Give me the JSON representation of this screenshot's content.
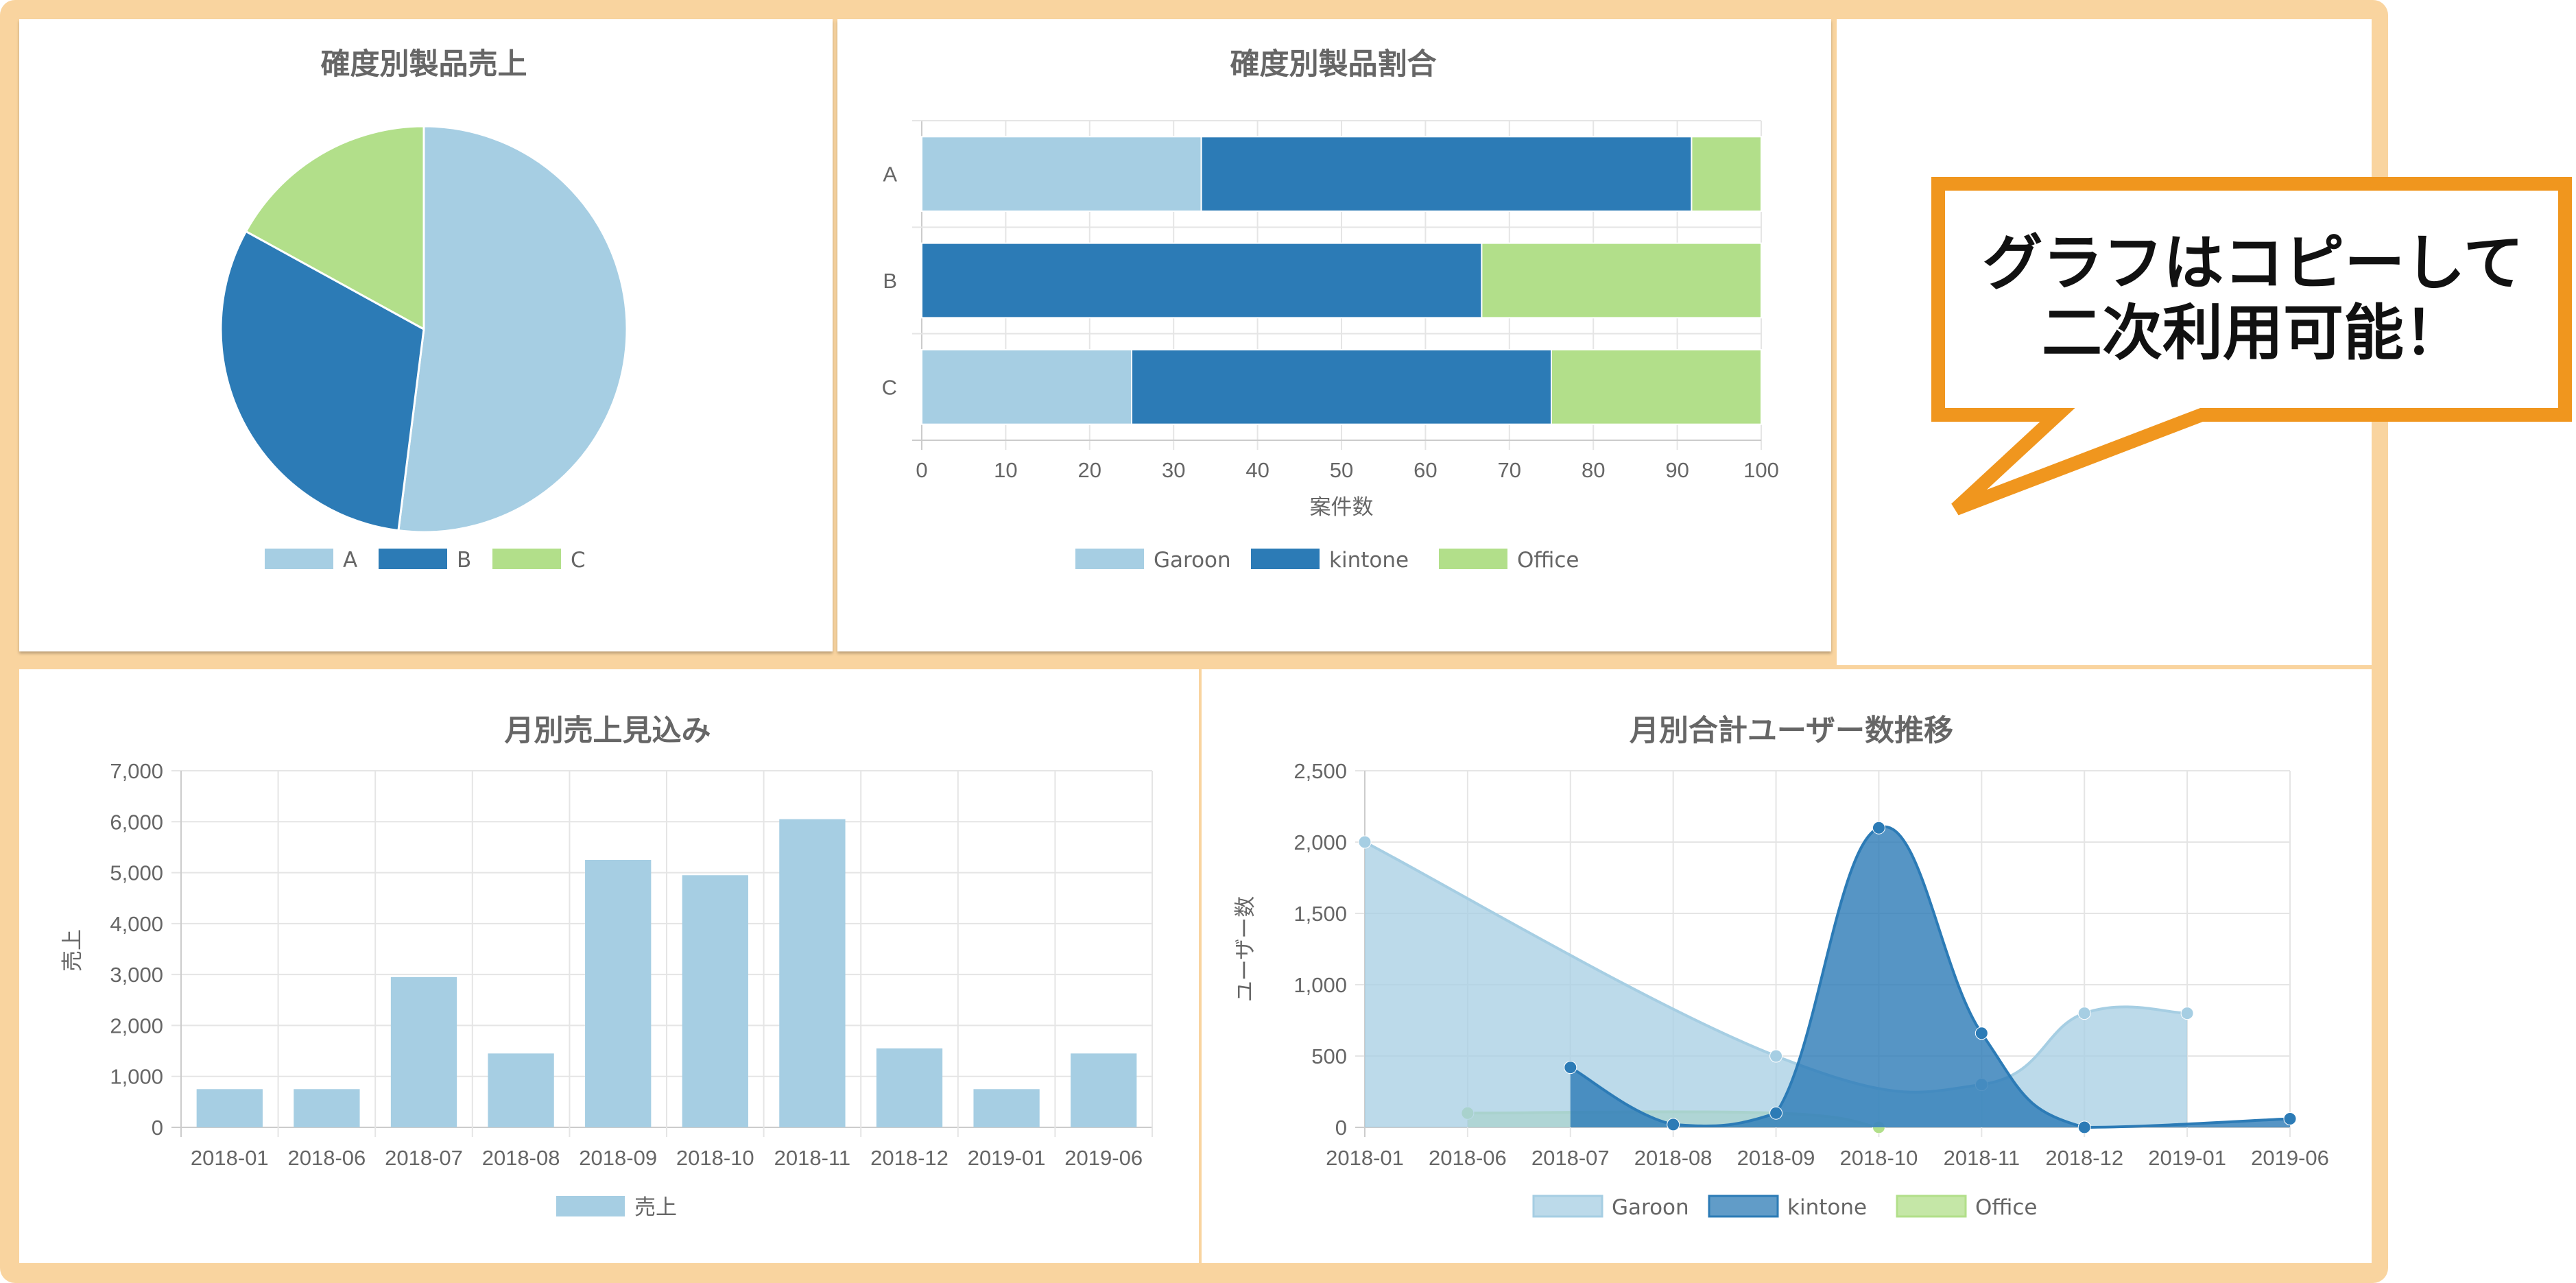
{
  "callout": {
    "line1": "グラフはコピーして",
    "line2": "二次利用可能！"
  },
  "colors": {
    "light": "#a6cee3",
    "dark": "#2c7bb6",
    "green": "#b2df8a",
    "frame": "#f9d49f",
    "callout_border": "#f0961e"
  },
  "chart_data": [
    {
      "id": "pie",
      "type": "pie",
      "title": "確度別製品売上",
      "labels": [
        "A",
        "B",
        "C"
      ],
      "values": [
        52,
        31,
        17
      ],
      "colors": [
        "#a6cee3",
        "#2c7bb6",
        "#b2df8a"
      ]
    },
    {
      "id": "stacked",
      "type": "bar",
      "orientation": "horizontal",
      "stacked": true,
      "title": "確度別製品割合",
      "categories": [
        "A",
        "B",
        "C"
      ],
      "xlabel": "案件数",
      "xlim": [
        0,
        100
      ],
      "xticks": [
        0,
        10,
        20,
        30,
        40,
        50,
        60,
        70,
        80,
        90,
        100
      ],
      "series": [
        {
          "name": "Garoon",
          "values": [
            33.3,
            0,
            25
          ],
          "color": "#a6cee3"
        },
        {
          "name": "kintone",
          "values": [
            58.4,
            66.7,
            50
          ],
          "color": "#2c7bb6"
        },
        {
          "name": "Office",
          "values": [
            8.3,
            33.3,
            25
          ],
          "color": "#b2df8a"
        }
      ]
    },
    {
      "id": "monthly",
      "type": "bar",
      "title": "月別売上見込み",
      "categories": [
        "2018-01",
        "2018-06",
        "2018-07",
        "2018-08",
        "2018-09",
        "2018-10",
        "2018-11",
        "2018-12",
        "2019-01",
        "2019-06"
      ],
      "ylabel": "売上",
      "ylim": [
        0,
        7000
      ],
      "yticks": [
        "0",
        "1,000",
        "2,000",
        "3,000",
        "4,000",
        "5,000",
        "6,000",
        "7,000"
      ],
      "series": [
        {
          "name": "売上",
          "values": [
            750,
            750,
            2950,
            1450,
            5250,
            4950,
            6050,
            1550,
            750,
            1450
          ],
          "color": "#a6cee3"
        }
      ]
    },
    {
      "id": "users",
      "type": "area",
      "title": "月別合計ユーザー数推移",
      "categories": [
        "2018-01",
        "2018-06",
        "2018-07",
        "2018-08",
        "2018-09",
        "2018-10",
        "2018-11",
        "2018-12",
        "2019-01",
        "2019-06"
      ],
      "ylabel": "ユーザー数",
      "ylim": [
        0,
        2500
      ],
      "yticks": [
        "0",
        "500",
        "1,000",
        "1,500",
        "2,000",
        "2,500"
      ],
      "series": [
        {
          "name": "Garoon",
          "values": [
            2000,
            null,
            null,
            null,
            500,
            null,
            300,
            800,
            800,
            null
          ],
          "color": "#a6cee3"
        },
        {
          "name": "kintone",
          "values": [
            null,
            null,
            420,
            20,
            100,
            2100,
            660,
            0,
            null,
            60
          ],
          "color": "#2c7bb6"
        },
        {
          "name": "Office",
          "values": [
            null,
            100,
            null,
            null,
            100,
            0,
            null,
            null,
            null,
            null
          ],
          "color": "#b2df8a"
        }
      ]
    }
  ]
}
